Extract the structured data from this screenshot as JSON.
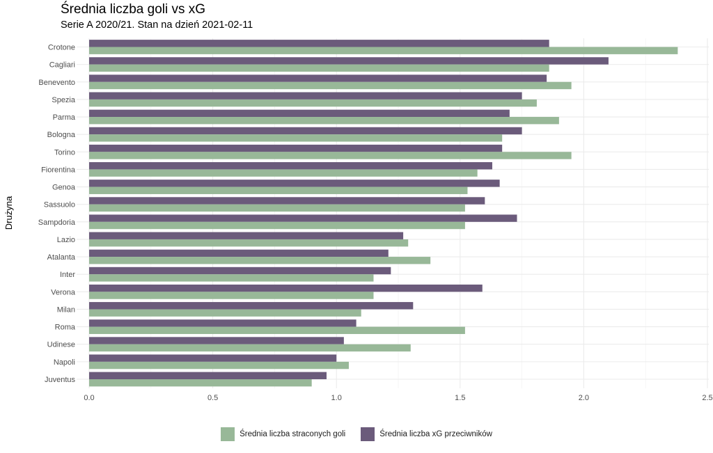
{
  "chart_data": {
    "type": "bar",
    "orientation": "horizontal",
    "title": "Średnia liczba goli vs xG",
    "subtitle": "Serie A 2020/21. Stan na dzień 2021-02-11",
    "ylabel": "Drużyna",
    "xlabel": "",
    "xlim": [
      0,
      2.5
    ],
    "xticks": [
      0.0,
      0.5,
      1.0,
      1.5,
      2.0,
      2.5
    ],
    "xtick_labels": [
      "0.0",
      "0.5",
      "1.0",
      "1.5",
      "2.0",
      "2.5"
    ],
    "grid": true,
    "legend_position": "bottom",
    "categories": [
      "Crotone",
      "Cagliari",
      "Benevento",
      "Spezia",
      "Parma",
      "Bologna",
      "Torino",
      "Fiorentina",
      "Genoa",
      "Sassuolo",
      "Sampdoria",
      "Lazio",
      "Atalanta",
      "Inter",
      "Verona",
      "Milan",
      "Roma",
      "Udinese",
      "Napoli",
      "Juventus"
    ],
    "series": [
      {
        "name": "Średnia liczba xG przeciwników",
        "color": "#6b5b7b",
        "values": [
          1.86,
          2.1,
          1.85,
          1.75,
          1.7,
          1.75,
          1.67,
          1.63,
          1.66,
          1.6,
          1.73,
          1.27,
          1.21,
          1.22,
          1.59,
          1.31,
          1.08,
          1.03,
          1.0,
          0.96
        ]
      },
      {
        "name": "Średnia liczba straconych goli",
        "color": "#98b898",
        "values": [
          2.38,
          1.86,
          1.95,
          1.81,
          1.9,
          1.67,
          1.95,
          1.57,
          1.53,
          1.52,
          1.52,
          1.29,
          1.38,
          1.15,
          1.15,
          1.1,
          1.52,
          1.3,
          1.05,
          0.9
        ]
      }
    ],
    "legend": [
      {
        "label": "Średnia liczba straconych goli",
        "color": "#98b898"
      },
      {
        "label": "Średnia liczba xG przeciwników",
        "color": "#6b5b7b"
      }
    ]
  }
}
